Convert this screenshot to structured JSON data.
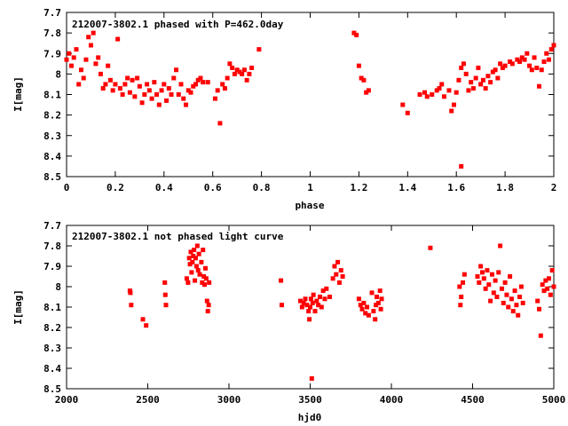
{
  "chart_data": [
    {
      "type": "scatter",
      "title": "212007-3802.1 phased with P=462.0day",
      "xlabel": "phase",
      "ylabel": "I[mag]",
      "xlim": [
        0,
        2
      ],
      "ylim": [
        7.7,
        8.5
      ],
      "y_inverted": true,
      "grid": false,
      "x_ticks": [
        "0",
        "0.2",
        "0.4",
        "0.6",
        "0.8",
        "1",
        "1.2",
        "1.4",
        "1.6",
        "1.8",
        "2"
      ],
      "y_ticks": [
        "7.7",
        "7.8",
        "7.9",
        "8",
        "8.1",
        "8.2",
        "8.3",
        "8.4",
        "8.5"
      ],
      "marker_color": "#ff0000",
      "series": [
        {
          "points": [
            [
              0.0,
              7.93
            ],
            [
              0.01,
              7.9
            ],
            [
              0.02,
              7.96
            ],
            [
              0.03,
              7.92
            ],
            [
              0.04,
              7.88
            ],
            [
              0.05,
              8.05
            ],
            [
              0.06,
              7.98
            ],
            [
              0.07,
              8.02
            ],
            [
              0.08,
              7.93
            ],
            [
              0.09,
              7.82
            ],
            [
              0.1,
              7.86
            ],
            [
              0.11,
              7.8
            ],
            [
              0.12,
              7.95
            ],
            [
              0.13,
              7.92
            ],
            [
              0.14,
              8.0
            ],
            [
              0.15,
              8.07
            ],
            [
              0.16,
              8.05
            ],
            [
              0.17,
              7.96
            ],
            [
              0.18,
              8.03
            ],
            [
              0.19,
              8.08
            ],
            [
              0.2,
              8.05
            ],
            [
              0.21,
              7.83
            ],
            [
              0.22,
              8.07
            ],
            [
              0.23,
              8.1
            ],
            [
              0.24,
              8.05
            ],
            [
              0.25,
              8.02
            ],
            [
              0.26,
              8.09
            ],
            [
              0.27,
              8.03
            ],
            [
              0.28,
              8.11
            ],
            [
              0.29,
              8.02
            ],
            [
              0.3,
              8.06
            ],
            [
              0.31,
              8.14
            ],
            [
              0.32,
              8.1
            ],
            [
              0.33,
              8.05
            ],
            [
              0.34,
              8.08
            ],
            [
              0.35,
              8.12
            ],
            [
              0.36,
              8.04
            ],
            [
              0.37,
              8.1
            ],
            [
              0.38,
              8.15
            ],
            [
              0.39,
              8.08
            ],
            [
              0.4,
              8.05
            ],
            [
              0.41,
              8.13
            ],
            [
              0.42,
              8.07
            ],
            [
              0.43,
              8.1
            ],
            [
              0.44,
              8.02
            ],
            [
              0.45,
              7.98
            ],
            [
              0.46,
              8.1
            ],
            [
              0.47,
              8.05
            ],
            [
              0.48,
              8.12
            ],
            [
              0.49,
              8.15
            ],
            [
              0.5,
              8.08
            ],
            [
              0.51,
              8.09
            ],
            [
              0.52,
              8.06
            ],
            [
              0.53,
              8.05
            ],
            [
              0.54,
              8.03
            ],
            [
              0.55,
              8.02
            ],
            [
              0.56,
              8.04
            ],
            [
              0.58,
              8.04
            ],
            [
              0.61,
              8.12
            ],
            [
              0.62,
              8.08
            ],
            [
              0.63,
              8.24
            ],
            [
              0.64,
              8.05
            ],
            [
              0.65,
              8.07
            ],
            [
              0.66,
              8.02
            ],
            [
              0.67,
              7.95
            ],
            [
              0.68,
              7.97
            ],
            [
              0.69,
              8.0
            ],
            [
              0.7,
              7.98
            ],
            [
              0.71,
              7.99
            ],
            [
              0.72,
              8.0
            ],
            [
              0.73,
              7.98
            ],
            [
              0.74,
              8.03
            ],
            [
              0.75,
              8.0
            ],
            [
              0.76,
              7.97
            ],
            [
              0.79,
              7.88
            ],
            [
              1.18,
              7.8
            ],
            [
              1.19,
              7.81
            ],
            [
              1.2,
              7.96
            ],
            [
              1.21,
              8.02
            ],
            [
              1.22,
              8.03
            ],
            [
              1.23,
              8.09
            ],
            [
              1.24,
              8.08
            ],
            [
              1.38,
              8.15
            ],
            [
              1.4,
              8.19
            ],
            [
              1.45,
              8.1
            ],
            [
              1.47,
              8.09
            ],
            [
              1.48,
              8.11
            ],
            [
              1.5,
              8.1
            ],
            [
              1.52,
              8.08
            ],
            [
              1.53,
              8.07
            ],
            [
              1.54,
              8.05
            ],
            [
              1.55,
              8.11
            ],
            [
              1.57,
              8.08
            ],
            [
              1.58,
              8.18
            ],
            [
              1.59,
              8.15
            ],
            [
              1.6,
              8.09
            ],
            [
              1.61,
              8.03
            ],
            [
              1.62,
              7.97
            ],
            [
              1.62,
              8.45
            ],
            [
              1.63,
              7.95
            ],
            [
              1.64,
              8.0
            ],
            [
              1.65,
              8.08
            ],
            [
              1.66,
              8.04
            ],
            [
              1.67,
              8.07
            ],
            [
              1.68,
              8.02
            ],
            [
              1.69,
              7.97
            ],
            [
              1.7,
              8.05
            ],
            [
              1.71,
              8.03
            ],
            [
              1.72,
              8.07
            ],
            [
              1.73,
              8.01
            ],
            [
              1.74,
              8.04
            ],
            [
              1.75,
              7.99
            ],
            [
              1.76,
              7.98
            ],
            [
              1.77,
              8.02
            ],
            [
              1.78,
              7.95
            ],
            [
              1.79,
              7.97
            ],
            [
              1.8,
              7.96
            ],
            [
              1.82,
              7.94
            ],
            [
              1.83,
              7.95
            ],
            [
              1.85,
              7.93
            ],
            [
              1.86,
              7.94
            ],
            [
              1.87,
              7.92
            ],
            [
              1.88,
              7.93
            ],
            [
              1.89,
              7.9
            ],
            [
              1.9,
              7.96
            ],
            [
              1.91,
              7.98
            ],
            [
              1.92,
              7.92
            ],
            [
              1.93,
              7.97
            ],
            [
              1.94,
              8.06
            ],
            [
              1.95,
              7.98
            ],
            [
              1.96,
              7.94
            ],
            [
              1.97,
              7.9
            ],
            [
              1.98,
              7.93
            ],
            [
              1.99,
              7.88
            ],
            [
              2.0,
              7.86
            ]
          ]
        }
      ]
    },
    {
      "type": "scatter",
      "title": "212007-3802.1 not phased light curve",
      "xlabel": "hjd0",
      "ylabel": "I[mag]",
      "xlim": [
        2000,
        5000
      ],
      "ylim": [
        7.7,
        8.5
      ],
      "y_inverted": true,
      "grid": false,
      "x_ticks": [
        "2000",
        "2500",
        "3000",
        "3500",
        "4000",
        "4500",
        "5000"
      ],
      "y_ticks": [
        "7.7",
        "7.8",
        "7.9",
        "8",
        "8.1",
        "8.2",
        "8.3",
        "8.4",
        "8.5"
      ],
      "marker_color": "#ff0000",
      "series": [
        {
          "points": [
            [
              2390,
              8.02
            ],
            [
              2393,
              8.03
            ],
            [
              2398,
              8.09
            ],
            [
              2470,
              8.16
            ],
            [
              2490,
              8.19
            ],
            [
              2605,
              7.98
            ],
            [
              2608,
              8.04
            ],
            [
              2612,
              8.09
            ],
            [
              2740,
              7.96
            ],
            [
              2748,
              7.98
            ],
            [
              2755,
              7.86
            ],
            [
              2760,
              7.89
            ],
            [
              2765,
              7.83
            ],
            [
              2770,
              7.93
            ],
            [
              2775,
              7.88
            ],
            [
              2780,
              7.85
            ],
            [
              2785,
              7.82
            ],
            [
              2790,
              7.97
            ],
            [
              2795,
              7.86
            ],
            [
              2800,
              7.9
            ],
            [
              2805,
              7.8
            ],
            [
              2810,
              7.92
            ],
            [
              2815,
              7.84
            ],
            [
              2820,
              7.94
            ],
            [
              2830,
              7.88
            ],
            [
              2835,
              7.98
            ],
            [
              2840,
              7.82
            ],
            [
              2845,
              7.95
            ],
            [
              2850,
              7.99
            ],
            [
              2855,
              7.91
            ],
            [
              2860,
              7.96
            ],
            [
              2865,
              8.07
            ],
            [
              2870,
              8.12
            ],
            [
              2875,
              8.09
            ],
            [
              2878,
              7.98
            ],
            [
              3320,
              7.97
            ],
            [
              3325,
              8.09
            ],
            [
              3440,
              8.07
            ],
            [
              3450,
              8.1
            ],
            [
              3460,
              8.08
            ],
            [
              3470,
              8.06
            ],
            [
              3480,
              8.09
            ],
            [
              3490,
              8.12
            ],
            [
              3495,
              8.16
            ],
            [
              3500,
              8.1
            ],
            [
              3505,
              8.06
            ],
            [
              3510,
              8.45
            ],
            [
              3515,
              8.08
            ],
            [
              3520,
              8.04
            ],
            [
              3530,
              8.12
            ],
            [
              3540,
              8.07
            ],
            [
              3550,
              8.09
            ],
            [
              3560,
              8.05
            ],
            [
              3570,
              8.1
            ],
            [
              3580,
              8.02
            ],
            [
              3590,
              8.06
            ],
            [
              3600,
              8.01
            ],
            [
              3620,
              8.05
            ],
            [
              3640,
              7.96
            ],
            [
              3650,
              7.9
            ],
            [
              3660,
              7.94
            ],
            [
              3670,
              7.88
            ],
            [
              3680,
              7.98
            ],
            [
              3690,
              7.92
            ],
            [
              3700,
              7.95
            ],
            [
              3800,
              8.06
            ],
            [
              3810,
              8.09
            ],
            [
              3820,
              8.11
            ],
            [
              3830,
              8.08
            ],
            [
              3840,
              8.13
            ],
            [
              3850,
              8.1
            ],
            [
              3860,
              8.14
            ],
            [
              3880,
              8.03
            ],
            [
              3890,
              8.12
            ],
            [
              3900,
              8.16
            ],
            [
              3905,
              8.09
            ],
            [
              3910,
              8.05
            ],
            [
              3920,
              8.08
            ],
            [
              3930,
              8.02
            ],
            [
              3935,
              8.11
            ],
            [
              3940,
              8.06
            ],
            [
              4240,
              7.81
            ],
            [
              4420,
              8.0
            ],
            [
              4425,
              8.09
            ],
            [
              4430,
              8.05
            ],
            [
              4440,
              7.98
            ],
            [
              4450,
              7.94
            ],
            [
              4530,
              7.95
            ],
            [
              4540,
              7.98
            ],
            [
              4550,
              7.9
            ],
            [
              4560,
              7.93
            ],
            [
              4570,
              7.96
            ],
            [
              4580,
              8.01
            ],
            [
              4590,
              7.92
            ],
            [
              4600,
              7.99
            ],
            [
              4610,
              8.07
            ],
            [
              4620,
              7.94
            ],
            [
              4630,
              8.03
            ],
            [
              4640,
              7.97
            ],
            [
              4650,
              8.05
            ],
            [
              4660,
              7.93
            ],
            [
              4670,
              7.8
            ],
            [
              4680,
              8.01
            ],
            [
              4690,
              8.08
            ],
            [
              4700,
              7.98
            ],
            [
              4710,
              8.04
            ],
            [
              4720,
              8.1
            ],
            [
              4730,
              7.95
            ],
            [
              4740,
              8.06
            ],
            [
              4750,
              8.12
            ],
            [
              4760,
              8.02
            ],
            [
              4770,
              8.09
            ],
            [
              4780,
              8.14
            ],
            [
              4790,
              8.05
            ],
            [
              4800,
              8.0
            ],
            [
              4810,
              8.08
            ],
            [
              4900,
              8.07
            ],
            [
              4910,
              8.11
            ],
            [
              4920,
              8.24
            ],
            [
              4930,
              7.99
            ],
            [
              4940,
              8.02
            ],
            [
              4950,
              7.97
            ],
            [
              4960,
              8.01
            ],
            [
              4970,
              7.96
            ],
            [
              4980,
              8.04
            ],
            [
              4990,
              7.92
            ],
            [
              5000,
              8.0
            ]
          ]
        }
      ]
    }
  ]
}
